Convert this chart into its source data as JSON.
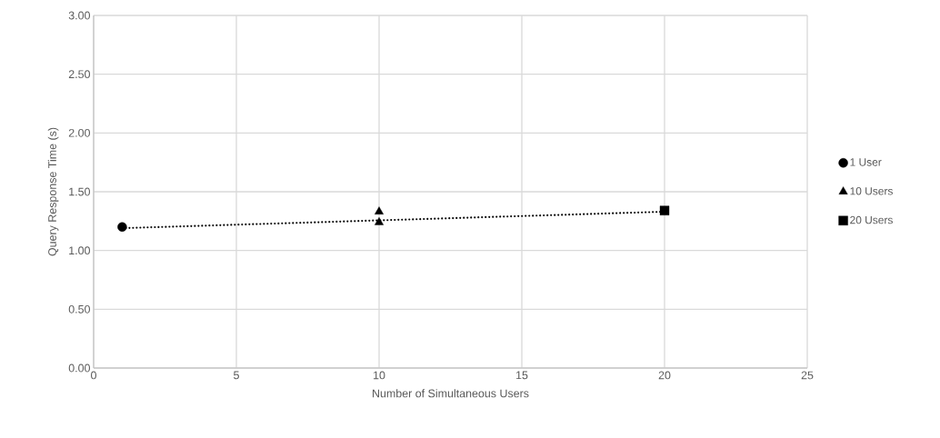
{
  "chart_data": {
    "type": "scatter",
    "xlabel": "Number of Simultaneous Users",
    "ylabel": "Query Response Time (s)",
    "xlim": [
      0,
      25
    ],
    "ylim": [
      0,
      3
    ],
    "xticks": [
      0,
      5,
      10,
      15,
      20,
      25
    ],
    "yticks": [
      {
        "value": 0,
        "label": "0.00"
      },
      {
        "value": 0.5,
        "label": "0.50"
      },
      {
        "value": 1,
        "label": "1.00"
      },
      {
        "value": 1.5,
        "label": "1.50"
      },
      {
        "value": 2,
        "label": "2.00"
      },
      {
        "value": 2.5,
        "label": "2.50"
      },
      {
        "value": 3,
        "label": "3.00"
      }
    ],
    "grid": true,
    "legend": "right",
    "series": [
      {
        "type": "line",
        "x": [
          1,
          20
        ],
        "values": [
          1.19,
          1.33
        ],
        "color": "#000000",
        "marker": "none",
        "line_style": "dotted"
      },
      {
        "name": "1 User",
        "x": [
          1
        ],
        "values": [
          1.2
        ],
        "color": "#000000",
        "marker": "circle"
      },
      {
        "name": "10 Users",
        "x": [
          10,
          10
        ],
        "values": [
          1.33,
          1.24
        ],
        "color": "#000000",
        "marker": "triangle"
      },
      {
        "name": "20 Users",
        "x": [
          20
        ],
        "values": [
          1.34
        ],
        "color": "#000000",
        "marker": "square"
      }
    ]
  }
}
